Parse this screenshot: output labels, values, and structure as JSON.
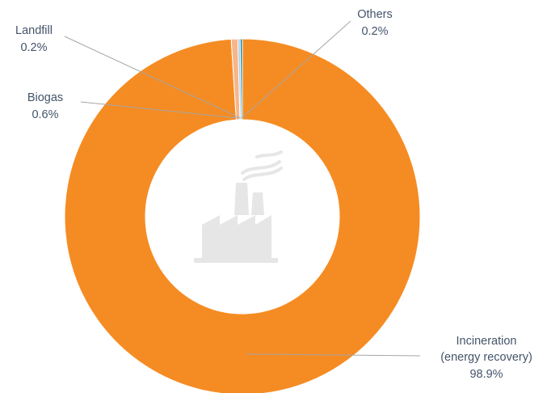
{
  "chart_data": {
    "type": "pie",
    "variant": "donut",
    "title": "",
    "categories": [
      "Incineration (energy recovery)",
      "Biogas",
      "Landfill",
      "Others"
    ],
    "values": [
      98.9,
      0.6,
      0.2,
      0.2
    ],
    "unit": "%",
    "labels": [
      {
        "lines": [
          "Incineration",
          "(energy recovery)"
        ],
        "value": "98.9%"
      },
      {
        "lines": [
          "Biogas"
        ],
        "value": "0.6%"
      },
      {
        "lines": [
          "Landfill"
        ],
        "value": "0.2%"
      },
      {
        "lines": [
          "Others"
        ],
        "value": "0.2%"
      }
    ],
    "colors": [
      "#f58c23",
      "#f7b58a",
      "#a8c8e0",
      "#1f8ea6"
    ],
    "legend": "none",
    "center_icon": "factory-icon"
  }
}
